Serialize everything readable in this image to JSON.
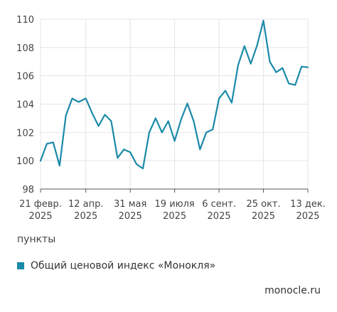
{
  "chart_data": {
    "type": "line",
    "ylabel": "пункты",
    "ylim": [
      98,
      110
    ],
    "yticks": [
      98,
      100,
      102,
      104,
      106,
      108,
      110
    ],
    "xlim": [
      "2025-02-21",
      "2025-12-13"
    ],
    "xticks": [
      {
        "date": "2025-02-21",
        "line1": "21 февр.",
        "line2": "2025"
      },
      {
        "date": "2025-04-12",
        "line1": "12 апр.",
        "line2": "2025"
      },
      {
        "date": "2025-05-31",
        "line1": "31 мая",
        "line2": "2025"
      },
      {
        "date": "2025-07-19",
        "line1": "19 июля",
        "line2": "2025"
      },
      {
        "date": "2025-09-06",
        "line1": "6 сент.",
        "line2": "2025"
      },
      {
        "date": "2025-10-25",
        "line1": "25 окт.",
        "line2": "2025"
      },
      {
        "date": "2025-12-13",
        "line1": "13 дек.",
        "line2": "2025"
      }
    ],
    "grid": true,
    "series": [
      {
        "name": "Общий ценовой индекс «Монокля»",
        "color": "#1a8aa8",
        "x": [
          "2025-02-21",
          "2025-02-28",
          "2025-03-07",
          "2025-03-14",
          "2025-03-21",
          "2025-03-28",
          "2025-04-04",
          "2025-04-12",
          "2025-04-19",
          "2025-04-26",
          "2025-05-03",
          "2025-05-10",
          "2025-05-17",
          "2025-05-24",
          "2025-05-31",
          "2025-06-07",
          "2025-06-14",
          "2025-06-21",
          "2025-06-28",
          "2025-07-05",
          "2025-07-12",
          "2025-07-19",
          "2025-07-26",
          "2025-08-02",
          "2025-08-09",
          "2025-08-16",
          "2025-08-23",
          "2025-08-30",
          "2025-09-06",
          "2025-09-13",
          "2025-09-20",
          "2025-09-27",
          "2025-10-04",
          "2025-10-11",
          "2025-10-18",
          "2025-10-25",
          "2025-11-01",
          "2025-11-08",
          "2025-11-15",
          "2025-11-22",
          "2025-11-29",
          "2025-12-06",
          "2025-12-13"
        ],
        "values": [
          100.0,
          101.2,
          101.3,
          99.65,
          103.2,
          104.4,
          104.15,
          104.4,
          103.35,
          102.45,
          103.25,
          102.8,
          100.2,
          100.8,
          100.6,
          99.75,
          99.45,
          102.0,
          103.0,
          102.0,
          102.8,
          101.4,
          102.9,
          104.05,
          102.8,
          100.8,
          102.0,
          102.2,
          104.4,
          104.95,
          104.1,
          106.75,
          108.1,
          106.85,
          108.15,
          109.9,
          107.0,
          106.25,
          106.55,
          105.45,
          105.35,
          106.65,
          106.6
        ]
      }
    ]
  },
  "source": "monocle.ru"
}
